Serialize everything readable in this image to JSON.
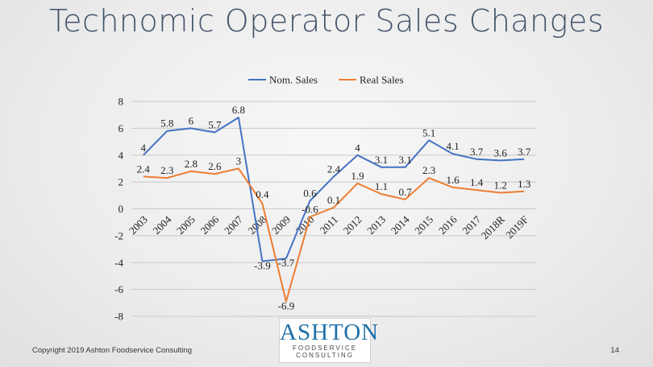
{
  "slide": {
    "title": "Technomic Operator Sales Changes",
    "footer": "Copyright 2019 Ashton Foodservice Consulting",
    "page_number": "14"
  },
  "logo": {
    "brand": "ASHTON",
    "line1": "FOODSERVICE",
    "line2": "CONSULTING",
    "brand_color": "#1f6fa8"
  },
  "chart_data": {
    "type": "line",
    "title": "",
    "xlabel": "",
    "ylabel": "",
    "categories": [
      "2003",
      "2004",
      "2005",
      "2006",
      "2007",
      "2008",
      "2009",
      "2010",
      "2011",
      "2012",
      "2013",
      "2014",
      "2015",
      "2016",
      "2017",
      "2018R",
      "2019F"
    ],
    "series": [
      {
        "name": "Nom. Sales",
        "color": "#4472c4",
        "values": [
          4,
          5.8,
          6,
          5.7,
          6.8,
          -3.9,
          -3.7,
          0.6,
          2.4,
          4,
          3.1,
          3.1,
          5.1,
          4.1,
          3.7,
          3.6,
          3.7
        ]
      },
      {
        "name": "Real Sales",
        "color": "#ed7d31",
        "values": [
          2.4,
          2.3,
          2.8,
          2.6,
          3,
          0.4,
          -6.9,
          -0.6,
          0.1,
          1.9,
          1.1,
          0.7,
          2.3,
          1.6,
          1.4,
          1.2,
          1.3
        ]
      }
    ],
    "ylim": [
      -8,
      8
    ],
    "yticks": [
      "8",
      "6",
      "4",
      "2",
      "0",
      "-2",
      "-4",
      "-6",
      "-8"
    ],
    "grid": true,
    "legend_position": "top"
  }
}
